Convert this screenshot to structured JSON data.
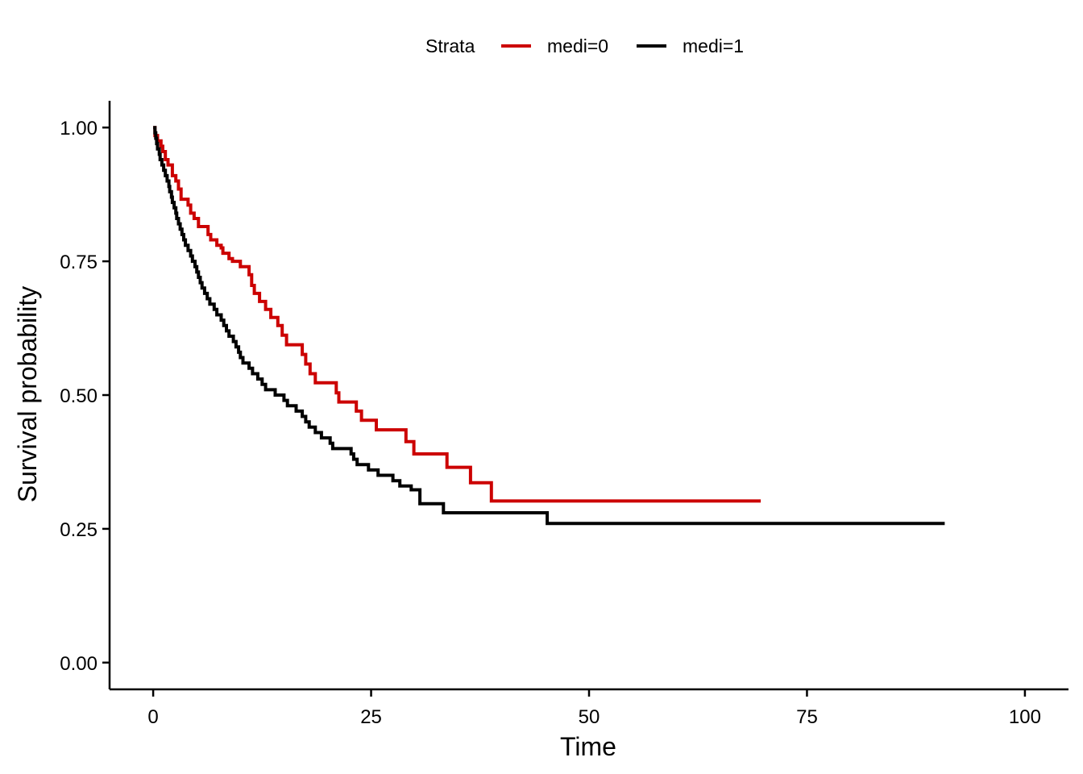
{
  "chart_data": {
    "type": "line",
    "step": true,
    "xlabel": "Time",
    "ylabel": "Survival probability",
    "xlim": [
      -5,
      105
    ],
    "ylim": [
      -0.05,
      1.05
    ],
    "x_ticks": [
      0,
      25,
      50,
      75,
      100
    ],
    "x_tick_labels": [
      "0",
      "25",
      "50",
      "75",
      "100"
    ],
    "y_ticks": [
      0,
      0.25,
      0.5,
      0.75,
      1.0
    ],
    "y_tick_labels": [
      "0.00",
      "0.25",
      "0.50",
      "0.75",
      "1.00"
    ],
    "grid": false,
    "legend": {
      "position": "top",
      "title": "Strata"
    },
    "series": [
      {
        "name": "medi=0",
        "color": "#CC0000",
        "points": [
          [
            0,
            1.0
          ],
          [
            0.2,
            0.985
          ],
          [
            0.5,
            0.975
          ],
          [
            0.9,
            0.965
          ],
          [
            1.1,
            0.955
          ],
          [
            1.4,
            0.94
          ],
          [
            1.7,
            0.93
          ],
          [
            2.2,
            0.91
          ],
          [
            2.6,
            0.9
          ],
          [
            2.9,
            0.885
          ],
          [
            3.2,
            0.866
          ],
          [
            4.0,
            0.855
          ],
          [
            4.3,
            0.84
          ],
          [
            4.7,
            0.83
          ],
          [
            5.2,
            0.815
          ],
          [
            6.3,
            0.8
          ],
          [
            6.6,
            0.79
          ],
          [
            7.3,
            0.78
          ],
          [
            7.8,
            0.775
          ],
          [
            8.0,
            0.765
          ],
          [
            8.7,
            0.755
          ],
          [
            9.1,
            0.75
          ],
          [
            10.0,
            0.74
          ],
          [
            10.7,
            0.74
          ],
          [
            11.0,
            0.725
          ],
          [
            11.3,
            0.705
          ],
          [
            11.6,
            0.69
          ],
          [
            12.2,
            0.675
          ],
          [
            12.9,
            0.66
          ],
          [
            13.5,
            0.645
          ],
          [
            14.3,
            0.63
          ],
          [
            14.8,
            0.612
          ],
          [
            15.3,
            0.594
          ],
          [
            17.1,
            0.576
          ],
          [
            17.5,
            0.558
          ],
          [
            18.0,
            0.54
          ],
          [
            18.6,
            0.523
          ],
          [
            21.0,
            0.504
          ],
          [
            21.3,
            0.487
          ],
          [
            23.3,
            0.47
          ],
          [
            23.9,
            0.453
          ],
          [
            25.6,
            0.435
          ],
          [
            29.0,
            0.413
          ],
          [
            29.9,
            0.39
          ],
          [
            33.7,
            0.365
          ],
          [
            36.4,
            0.336
          ],
          [
            38.8,
            0.302
          ],
          [
            69.7,
            0.302
          ]
        ]
      },
      {
        "name": "medi=1",
        "color": "#000000",
        "points": [
          [
            0,
            1.0
          ],
          [
            0.2,
            0.99
          ],
          [
            0.3,
            0.98
          ],
          [
            0.4,
            0.97
          ],
          [
            0.5,
            0.96
          ],
          [
            0.7,
            0.95
          ],
          [
            0.8,
            0.94
          ],
          [
            1.0,
            0.93
          ],
          [
            1.2,
            0.92
          ],
          [
            1.4,
            0.91
          ],
          [
            1.6,
            0.9
          ],
          [
            1.8,
            0.89
          ],
          [
            1.9,
            0.88
          ],
          [
            2.1,
            0.87
          ],
          [
            2.2,
            0.86
          ],
          [
            2.4,
            0.85
          ],
          [
            2.6,
            0.84
          ],
          [
            2.7,
            0.83
          ],
          [
            2.9,
            0.82
          ],
          [
            3.1,
            0.81
          ],
          [
            3.3,
            0.8
          ],
          [
            3.5,
            0.79
          ],
          [
            3.7,
            0.78
          ],
          [
            4.0,
            0.77
          ],
          [
            4.3,
            0.76
          ],
          [
            4.5,
            0.75
          ],
          [
            4.8,
            0.74
          ],
          [
            5.0,
            0.73
          ],
          [
            5.2,
            0.72
          ],
          [
            5.4,
            0.71
          ],
          [
            5.6,
            0.7
          ],
          [
            5.9,
            0.69
          ],
          [
            6.2,
            0.68
          ],
          [
            6.5,
            0.67
          ],
          [
            7.0,
            0.66
          ],
          [
            7.3,
            0.65
          ],
          [
            7.8,
            0.64
          ],
          [
            8.1,
            0.63
          ],
          [
            8.4,
            0.62
          ],
          [
            8.7,
            0.61
          ],
          [
            9.2,
            0.6
          ],
          [
            9.5,
            0.59
          ],
          [
            9.8,
            0.58
          ],
          [
            10.0,
            0.57
          ],
          [
            10.3,
            0.56
          ],
          [
            11.0,
            0.55
          ],
          [
            11.4,
            0.54
          ],
          [
            12.0,
            0.53
          ],
          [
            12.5,
            0.52
          ],
          [
            12.9,
            0.51
          ],
          [
            14.0,
            0.5
          ],
          [
            15.0,
            0.49
          ],
          [
            15.4,
            0.48
          ],
          [
            16.4,
            0.47
          ],
          [
            17.1,
            0.46
          ],
          [
            17.5,
            0.45
          ],
          [
            17.9,
            0.44
          ],
          [
            18.6,
            0.43
          ],
          [
            19.3,
            0.42
          ],
          [
            20.3,
            0.41
          ],
          [
            20.6,
            0.4
          ],
          [
            22.7,
            0.39
          ],
          [
            23.0,
            0.38
          ],
          [
            23.4,
            0.37
          ],
          [
            24.7,
            0.36
          ],
          [
            25.8,
            0.35
          ],
          [
            27.5,
            0.34
          ],
          [
            28.3,
            0.33
          ],
          [
            29.6,
            0.323
          ],
          [
            30.6,
            0.297
          ],
          [
            33.3,
            0.28
          ],
          [
            45.2,
            0.26
          ],
          [
            90.8,
            0.26
          ]
        ]
      }
    ]
  }
}
